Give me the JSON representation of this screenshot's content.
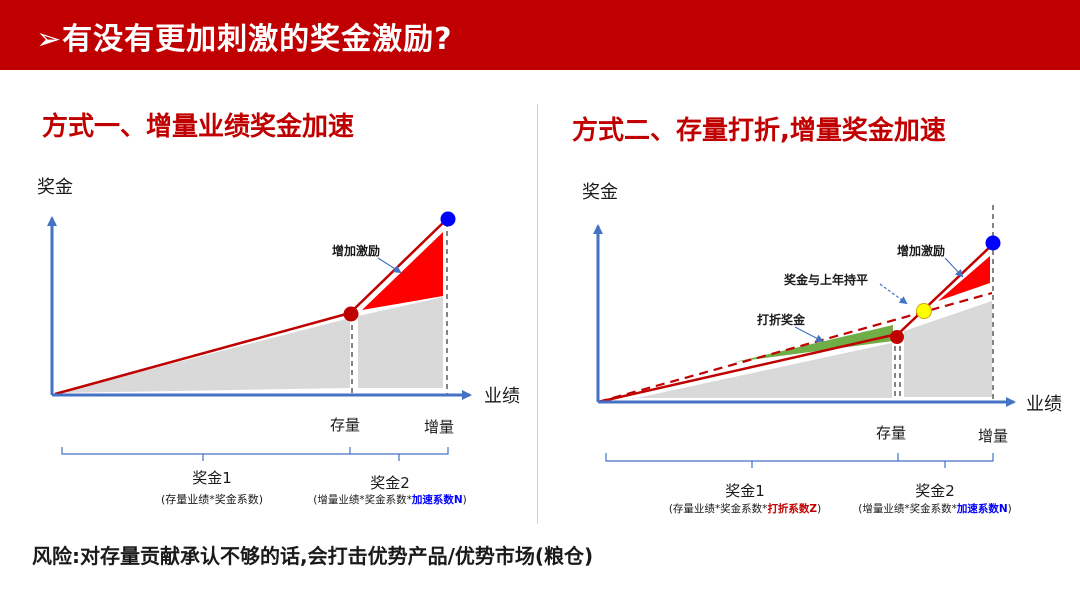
{
  "header": {
    "title": "➢有没有更加刺激的奖金激励?"
  },
  "left": {
    "subtitle": "方式一、增量业绩奖金加速",
    "ylabel": "奖金",
    "xlabel": "业绩",
    "marks": {
      "stock": "存量",
      "increment": "增量"
    },
    "callout_extra": "增加激励",
    "bonus1": {
      "title": "奖金1",
      "formula": "(存量业绩*奖金系数)"
    },
    "bonus2": {
      "title": "奖金2",
      "formula_prefix": "(增量业绩*奖金系数*",
      "formula_highlight": "加速系数N",
      "formula_suffix": ")"
    }
  },
  "right": {
    "subtitle": "方式二、存量打折,增量奖金加速",
    "ylabel": "奖金",
    "xlabel": "业绩",
    "marks": {
      "stock": "存量",
      "increment": "增量"
    },
    "callout_extra": "增加激励",
    "callout_flat": "奖金与上年持平",
    "callout_discount": "打折奖金",
    "bonus1": {
      "title": "奖金1",
      "formula_prefix": "(存量业绩*奖金系数*",
      "formula_highlight": "打折系数Z",
      "formula_suffix": ")"
    },
    "bonus2": {
      "title": "奖金2",
      "formula_prefix": "(增量业绩*奖金系数*",
      "formula_highlight": "加速系数N",
      "formula_suffix": ")"
    }
  },
  "footer": {
    "risk": "风险:对存量贡献承认不够的话,会打击优势产品/优势市场(粮仓)"
  },
  "colors": {
    "brand_red": "#c00000",
    "axis_blue": "#4472c4",
    "gray_fill": "#d9d9d9",
    "green": "#70ad47",
    "marker_blue": "#0000ff",
    "marker_yellow": "#ffff00",
    "highlight_red": "#c00000",
    "highlight_blue": "#0000ff"
  }
}
